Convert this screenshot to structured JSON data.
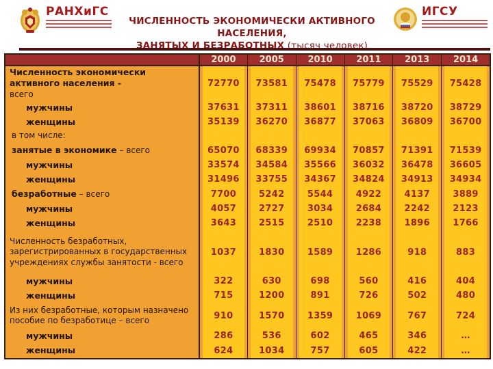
{
  "header": {
    "logo_left": {
      "name": "РАНХиГС"
    },
    "logo_right": {
      "name": "ИГСУ"
    },
    "title_line1": "ЧИСЛЕННОСТЬ ЭКОНОМИЧЕСКИ АКТИВНОГО НАСЕЛЕНИЯ,",
    "title_line2_bold": "ЗАНЯТЫХ И БЕЗРАБОТНЫХ",
    "title_line2_normal": " (тысяч человек)"
  },
  "colors": {
    "title_red": "#8b1414",
    "table_header_bg": "#9e2f2c",
    "label_column_bg": "#f0a132",
    "data_column_bg": "#ffc71f",
    "number_color": "#9b2420",
    "border_color": "#33200e"
  },
  "table": {
    "years": [
      "2000",
      "2005",
      "2010",
      "2011",
      "2013",
      "2014"
    ],
    "rows": [
      {
        "indent": "main",
        "segments": [
          {
            "text": "Численность экономически активного населения - ",
            "bold": true
          },
          {
            "text": "всего",
            "bold": false,
            "break": true
          }
        ],
        "values": [
          "72770",
          "73581",
          "75478",
          "75779",
          "75529",
          "75428"
        ]
      },
      {
        "indent": "sub",
        "segments": [
          {
            "text": "мужчины",
            "bold": true
          }
        ],
        "values": [
          "37631",
          "37311",
          "38601",
          "38716",
          "38720",
          "38729"
        ]
      },
      {
        "indent": "sub",
        "segments": [
          {
            "text": "женщины",
            "bold": true
          }
        ],
        "values": [
          "35139",
          "36270",
          "36877",
          "37063",
          "36809",
          "36700"
        ]
      },
      {
        "indent": "group",
        "segments": [
          {
            "text": "в том числе:",
            "bold": false
          }
        ],
        "values": [
          "",
          "",
          "",
          "",
          "",
          ""
        ]
      },
      {
        "indent": "group",
        "segments": [
          {
            "text": "занятые в экономике",
            "bold": true
          },
          {
            "text": " – всего",
            "bold": false
          }
        ],
        "values": [
          "65070",
          "68339",
          "69934",
          "70857",
          "71391",
          "71539"
        ]
      },
      {
        "indent": "sub",
        "segments": [
          {
            "text": "мужчины",
            "bold": true
          }
        ],
        "values": [
          "33574",
          "34584",
          "35566",
          "36032",
          "36478",
          "36605"
        ]
      },
      {
        "indent": "sub",
        "segments": [
          {
            "text": "женщины",
            "bold": true
          }
        ],
        "values": [
          "31496",
          "33755",
          "34367",
          "34824",
          "34913",
          "34934"
        ]
      },
      {
        "indent": "group",
        "segments": [
          {
            "text": "безработные",
            "bold": true
          },
          {
            "text": " – всего",
            "bold": false
          }
        ],
        "values": [
          "7700",
          "5242",
          "5544",
          "4922",
          "4137",
          "3889"
        ]
      },
      {
        "indent": "sub",
        "segments": [
          {
            "text": "мужчины",
            "bold": true
          }
        ],
        "values": [
          "4057",
          "2727",
          "3034",
          "2684",
          "2242",
          "2123"
        ]
      },
      {
        "indent": "sub",
        "segments": [
          {
            "text": "женщины",
            "bold": true
          }
        ],
        "values": [
          "3643",
          "2515",
          "2510",
          "2238",
          "1896",
          "1766"
        ]
      },
      {
        "indent": "main",
        "segments": [
          {
            "text": "Численность безработных, зарегистрированных в государственных учреждениях службы занятости - всего",
            "bold": false
          }
        ],
        "values": [
          "1037",
          "1830",
          "1589",
          "1286",
          "918",
          "883"
        ]
      },
      {
        "indent": "sub",
        "segments": [
          {
            "text": "мужчины",
            "bold": true
          }
        ],
        "values": [
          "322",
          "630",
          "698",
          "560",
          "416",
          "404"
        ]
      },
      {
        "indent": "sub",
        "segments": [
          {
            "text": "женщины",
            "bold": true
          }
        ],
        "values": [
          "715",
          "1200",
          "891",
          "726",
          "502",
          "480"
        ]
      },
      {
        "indent": "main",
        "segments": [
          {
            "text": "Из них безработные, которым назначено пособие по безработице – всего",
            "bold": false
          }
        ],
        "values": [
          "910",
          "1570",
          "1359",
          "1069",
          "767",
          "724"
        ]
      },
      {
        "indent": "sub",
        "segments": [
          {
            "text": "мужчины",
            "bold": true
          }
        ],
        "values": [
          "286",
          "536",
          "602",
          "465",
          "346",
          "…"
        ]
      },
      {
        "indent": "sub",
        "segments": [
          {
            "text": "женщины",
            "bold": true
          }
        ],
        "values": [
          "624",
          "1034",
          "757",
          "605",
          "422",
          "…"
        ]
      }
    ]
  }
}
